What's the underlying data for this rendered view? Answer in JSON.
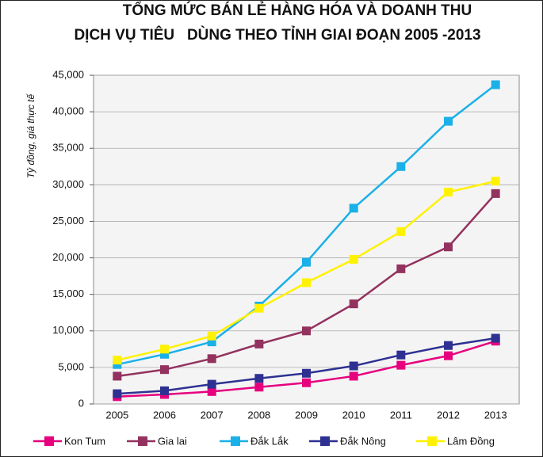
{
  "chart_data": {
    "type": "line",
    "title": [
      "TỔNG MỨC BÁN LẺ HÀNG HÓA VÀ DOANH THU",
      "DỊCH VỤ TIÊU   DÙNG THEO TỈNH GIAI ĐOẠN 2005 -2013"
    ],
    "y_label": "Tỷ đồng, giá thực tế",
    "categories": [
      "2005",
      "2006",
      "2007",
      "2008",
      "2009",
      "2010",
      "2011",
      "2012",
      "2013"
    ],
    "series": [
      {
        "name": "Kon Tum",
        "color": "#e6007e",
        "values": [
          1000,
          1300,
          1700,
          2300,
          2900,
          3800,
          5300,
          6600,
          8600
        ]
      },
      {
        "name": "Gia lai",
        "color": "#93325e",
        "values": [
          3800,
          4700,
          6200,
          8200,
          10000,
          13700,
          18500,
          21500,
          28800
        ]
      },
      {
        "name": "Đắk Lắk",
        "color": "#1ab0e8",
        "values": [
          5400,
          6800,
          8500,
          13400,
          19400,
          26800,
          32500,
          38700,
          43700
        ]
      },
      {
        "name": "Đắk Nông",
        "color": "#2e3192",
        "values": [
          1400,
          1800,
          2700,
          3500,
          4200,
          5200,
          6700,
          8000,
          9000
        ]
      },
      {
        "name": "Lâm Đồng",
        "color": "#fff200",
        "values": [
          6000,
          7500,
          9300,
          13100,
          16600,
          19800,
          23600,
          29000,
          30500
        ]
      }
    ],
    "ylim": [
      0,
      45000
    ],
    "yticks": [
      0,
      {
        "value": 5000,
        "label": "5,000"
      },
      {
        "value": 10000,
        "label": "10,000"
      },
      {
        "value": 15000,
        "label": "15,000"
      },
      {
        "value": 20000,
        "label": "20,000"
      },
      {
        "value": 25000,
        "label": "25,000"
      },
      {
        "value": 30000,
        "label": "30,000"
      },
      {
        "value": 35000,
        "label": "35,000"
      },
      {
        "value": 40000,
        "label": "40,000"
      },
      {
        "value": 45000,
        "label": "45,000"
      }
    ],
    "grid": true,
    "legend": "bottom"
  }
}
